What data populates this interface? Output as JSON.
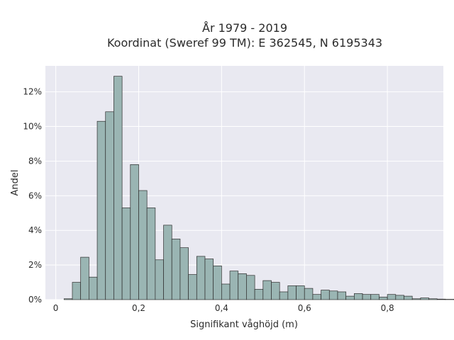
{
  "chart_data": {
    "type": "histogram",
    "title": "År 1979 - 2019",
    "subtitle": "Koordinat (Sweref 99 TM): E 362545, N 6195343",
    "xlabel": "Signifikant våghöjd (m)",
    "ylabel": "Andel",
    "xlim": [
      -0.025,
      0.935
    ],
    "ylim": [
      0,
      13.5
    ],
    "x_ticks": [
      {
        "value": 0,
        "label": "0"
      },
      {
        "value": 0.2,
        "label": "0,2"
      },
      {
        "value": 0.4,
        "label": "0,4"
      },
      {
        "value": 0.6,
        "label": "0,6"
      },
      {
        "value": 0.8,
        "label": "0,8"
      }
    ],
    "y_ticks": [
      {
        "value": 0,
        "label": "0%"
      },
      {
        "value": 2,
        "label": "2%"
      },
      {
        "value": 4,
        "label": "4%"
      },
      {
        "value": 6,
        "label": "6%"
      },
      {
        "value": 8,
        "label": "8%"
      },
      {
        "value": 10,
        "label": "10%"
      },
      {
        "value": 12,
        "label": "12%"
      }
    ],
    "bin_start": 0.02,
    "bin_width": 0.02,
    "values": [
      0.05,
      1.0,
      2.45,
      1.3,
      10.3,
      10.85,
      12.9,
      5.3,
      7.8,
      6.3,
      5.3,
      2.3,
      4.3,
      3.5,
      3.0,
      1.45,
      2.5,
      2.35,
      1.95,
      0.9,
      1.65,
      1.5,
      1.4,
      0.6,
      1.1,
      1.0,
      0.45,
      0.8,
      0.8,
      0.65,
      0.3,
      0.55,
      0.5,
      0.45,
      0.2,
      0.35,
      0.3,
      0.3,
      0.15,
      0.3,
      0.25,
      0.2,
      0.05,
      0.1,
      0.05,
      0.03,
      0.02,
      0.02,
      0.01,
      0.01,
      0.01
    ],
    "bar_color": "#9ab5b3",
    "bar_edge_color": "#2e2e2e",
    "plot_background": "#e9e9f1",
    "grid": true
  }
}
